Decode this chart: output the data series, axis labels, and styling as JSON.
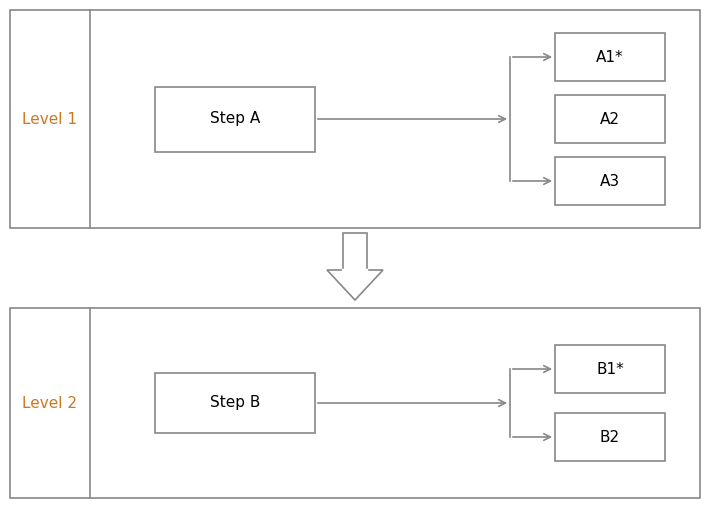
{
  "fig_width": 7.1,
  "fig_height": 5.12,
  "dpi": 100,
  "bg_color": "#ffffff",
  "border_color": "#888888",
  "box_edge_color": "#888888",
  "label_color": "#cc7722",
  "text_color": "#000000",
  "level1_label": "Level 1",
  "level2_label": "Level 2",
  "stepA_label": "Step A",
  "stepB_label": "Step B",
  "level1_outputs": [
    "A1*",
    "A2",
    "A3"
  ],
  "level2_outputs": [
    "B1*",
    "B2"
  ],
  "arrow_face_color": "#ffffff",
  "arrow_edge_color": "#888888",
  "line_color": "#888888",
  "line_width": 1.2
}
